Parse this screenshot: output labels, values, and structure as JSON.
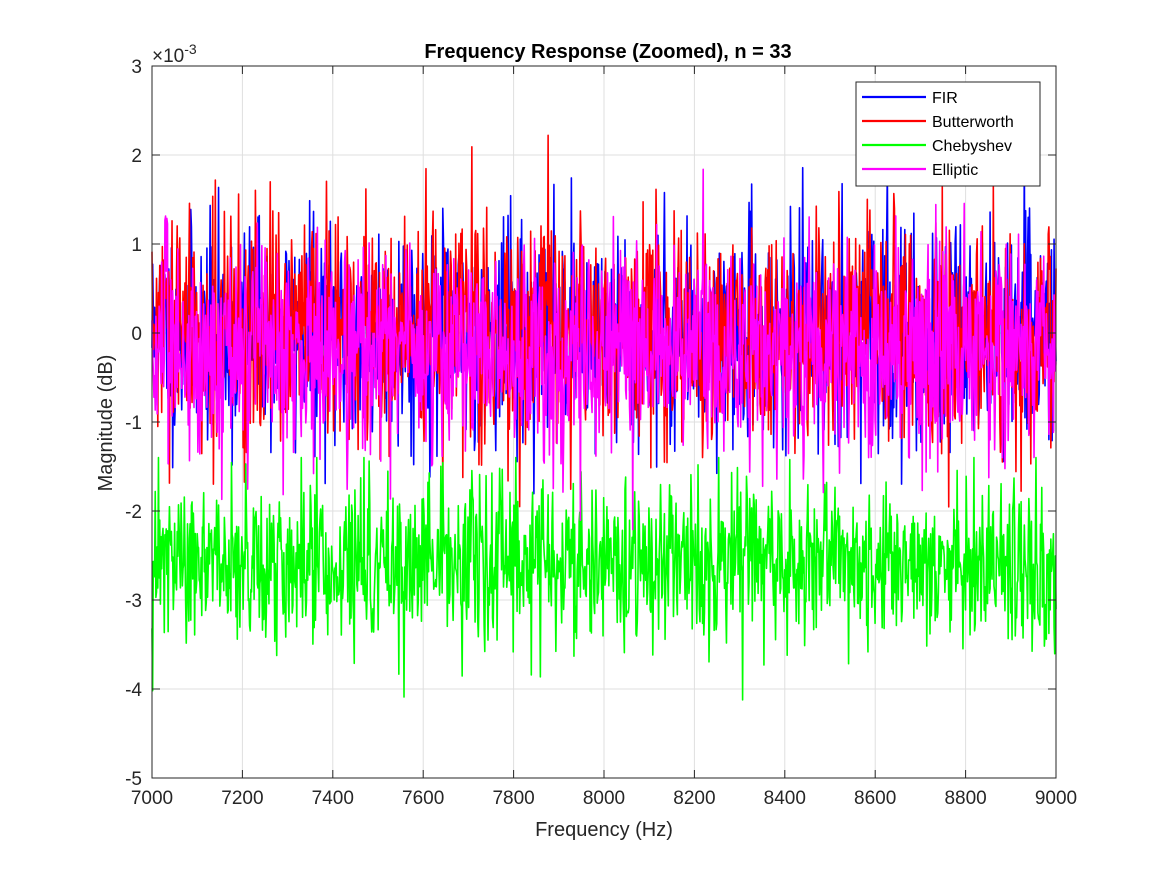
{
  "chart_data": {
    "type": "line",
    "title": "Frequency Response (Zoomed), n = 33",
    "xlabel": "Frequency (Hz)",
    "ylabel": "Magnitude (dB)",
    "y_exponent_label": "×10",
    "y_exponent_power": "-3",
    "xlim": [
      7000,
      9000
    ],
    "ylim": [
      -0.005,
      0.003
    ],
    "xticks": [
      7000,
      7200,
      7400,
      7600,
      7800,
      8000,
      8200,
      8400,
      8600,
      8800,
      9000
    ],
    "xtick_labels": [
      "7000",
      "7200",
      "7400",
      "7600",
      "7800",
      "8000",
      "8200",
      "8400",
      "8600",
      "8800",
      "9000"
    ],
    "yticks": [
      -0.005,
      -0.004,
      -0.003,
      -0.002,
      -0.001,
      0,
      0.001,
      0.002,
      0.003
    ],
    "ytick_labels": [
      "-5",
      "-4",
      "-3",
      "-2",
      "-1",
      "0",
      "1",
      "2",
      "3"
    ],
    "grid": true,
    "legend_position": "top-right",
    "series": [
      {
        "name": "FIR",
        "color": "#0000ff",
        "mean": 0.0,
        "std": 0.0006,
        "min": -0.0021,
        "max": 0.0021
      },
      {
        "name": "Butterworth",
        "color": "#ff0000",
        "mean": 0.0,
        "std": 0.00065,
        "min": -0.0025,
        "max": 0.0024
      },
      {
        "name": "Chebyshev",
        "color": "#00ff00",
        "mean": -0.0026,
        "std": 0.00045,
        "min": -0.005,
        "max": -0.0014
      },
      {
        "name": "Elliptic",
        "color": "#ff00ff",
        "mean": -0.0002,
        "std": 0.0006,
        "min": -0.0025,
        "max": 0.0024
      }
    ]
  }
}
